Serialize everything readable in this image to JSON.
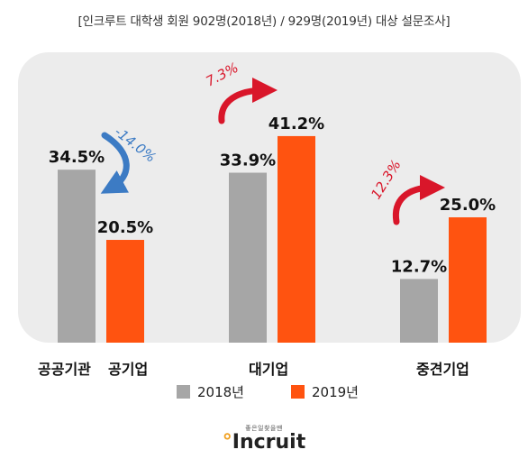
{
  "header": {
    "title": "[인크루트 대학생 회원 902명(2018년) / 929명(2019년) 대상 설문조사]"
  },
  "chart_data": {
    "type": "bar",
    "categories": [
      "공공기관",
      "공기업",
      "대기업",
      "중견기업"
    ],
    "groups": [
      {
        "label": "공공기관 공기업",
        "bars": [
          {
            "series": "2018년",
            "category": "공공기관",
            "value": 34.5,
            "text": "34.5%"
          },
          {
            "series": "2019년",
            "category": "공기업",
            "value": 20.5,
            "text": "20.5%"
          }
        ],
        "change": "-14.0%",
        "direction": "down"
      },
      {
        "label": "대기업",
        "bars": [
          {
            "series": "2018년",
            "category": "대기업",
            "value": 33.9,
            "text": "33.9%"
          },
          {
            "series": "2019년",
            "category": "대기업",
            "value": 41.2,
            "text": "41.2%"
          }
        ],
        "change": "7.3%",
        "direction": "up"
      },
      {
        "label": "중견기업",
        "bars": [
          {
            "series": "2018년",
            "category": "중견기업",
            "value": 12.7,
            "text": "12.7%"
          },
          {
            "series": "2019년",
            "category": "중견기업",
            "value": 25.0,
            "text": "25.0%"
          }
        ],
        "change": "12.3%",
        "direction": "up"
      }
    ],
    "series": [
      {
        "name": "2018년",
        "values": [
          34.5,
          null,
          33.9,
          12.7
        ]
      },
      {
        "name": "2019년",
        "values": [
          null,
          20.5,
          41.2,
          25.0
        ]
      }
    ],
    "ylim": [
      0,
      50
    ],
    "grid": false,
    "legend_position": "bottom"
  },
  "labels": {
    "cat_public": "공공기관",
    "cat_pubcorp": "공기업",
    "cat_large": "대기업",
    "cat_mid": "중견기업"
  },
  "legend": {
    "y2018": "2018년",
    "y2019": "2019년"
  },
  "colors": {
    "series_2018": "#a6a6a6",
    "series_2019": "#ff5310",
    "arrow_down": "#3c7bc4",
    "arrow_up": "#d9162a",
    "change_down_text": "#3c7bc4",
    "change_up_text": "#d9162a",
    "panel": "#ececec"
  },
  "logo": {
    "tagline": "좋은일찾을땐",
    "brand": "Incruit"
  }
}
